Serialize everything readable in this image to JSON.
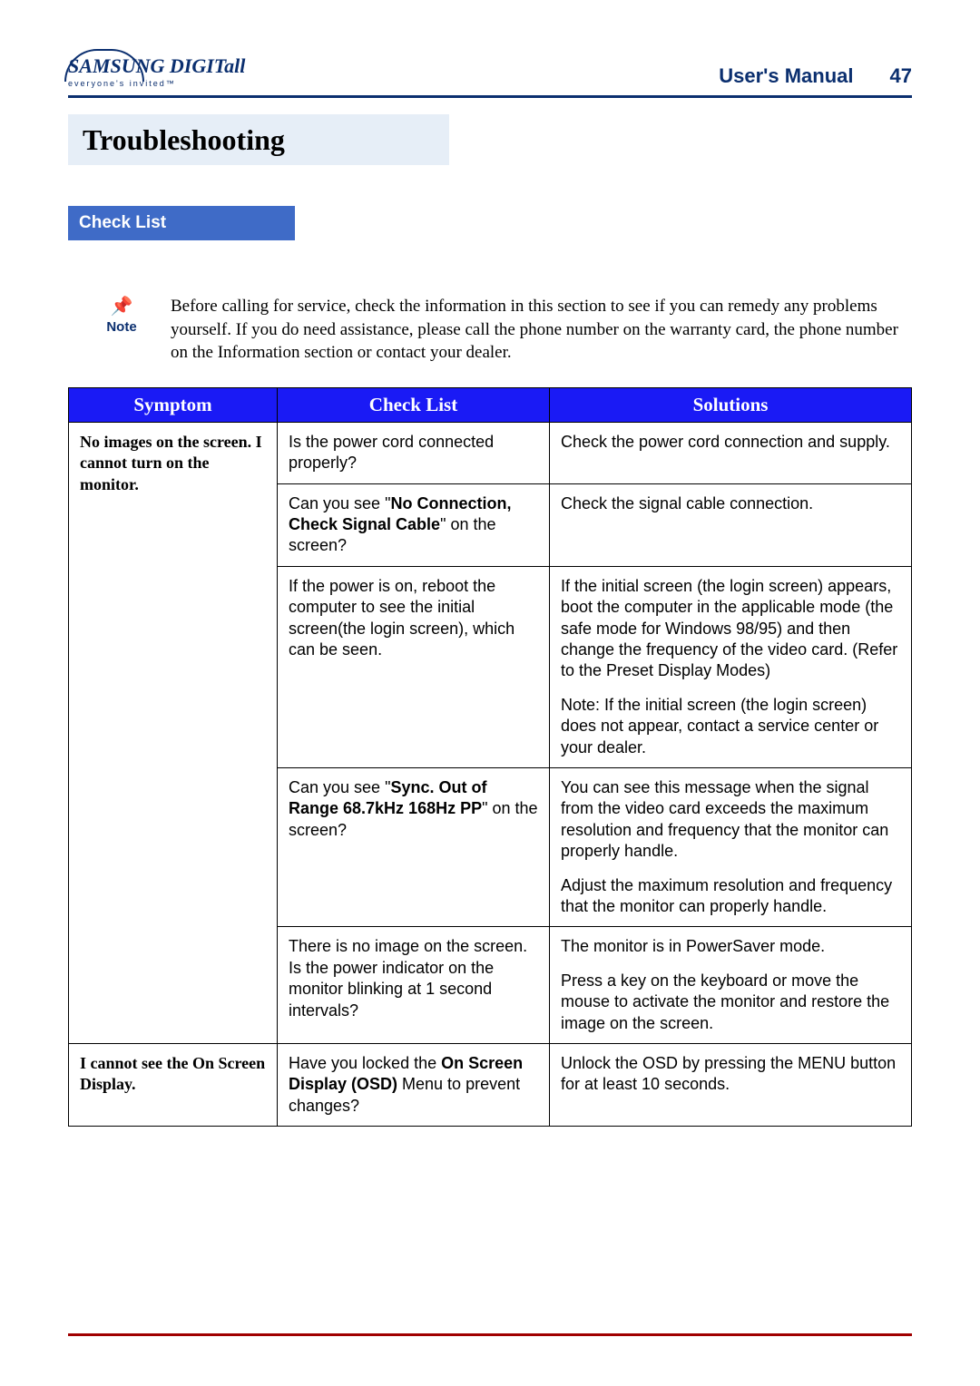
{
  "brand": {
    "logo_main": "SAMSUNG DIGITall",
    "logo_sub": "everyone's invited™"
  },
  "header": {
    "manual_label": "User's Manual",
    "page_number": "47"
  },
  "title_band": "Troubleshooting",
  "subsection": "Check List",
  "note": {
    "icon_label": "Note",
    "text": "Before calling for service, check the information in this section to see if you can remedy any problems yourself. If you do need assistance, please call the phone number on the warranty card, the phone number on the Information section or contact your dealer."
  },
  "colors": {
    "brand_navy": "#0b2f6f",
    "band_light": "#e6eef7",
    "tab_blue": "#3f6bc7",
    "table_header_blue": "#1a1af5",
    "footer_rule": "#a00000"
  },
  "table": {
    "headers": {
      "symptom": "Symptom",
      "check": "Check List",
      "solutions": "Solutions"
    },
    "groups": [
      {
        "symptom": "No images on the screen. I cannot turn on the monitor.",
        "rows": [
          {
            "check": {
              "prefix": "Is the power cord connected properly?"
            },
            "solution": {
              "p1": "Check the power cord connection and supply."
            }
          },
          {
            "check": {
              "prefix": "Can you see \"",
              "bold": "No Connection, Check Signal Cable",
              "suffix": "\" on the screen?"
            },
            "solution": {
              "p1": "Check the signal cable connection."
            }
          },
          {
            "check": {
              "prefix": "If the power is on, reboot the computer to see the initial screen(the login screen), which can be seen."
            },
            "solution": {
              "p1": "If the initial screen (the login screen) appears, boot the computer in the applicable mode (the safe mode for Windows 98/95) and then change the frequency of the video card. (Refer to the Preset Display Modes)",
              "p2": "Note: If the initial screen (the login screen) does not appear, contact a service center or your dealer."
            }
          },
          {
            "check": {
              "prefix": "Can you see \"",
              "bold": "Sync. Out of Range 68.7kHz 168Hz PP",
              "suffix": "\" on the screen?"
            },
            "solution": {
              "p1": "You can see this message when the signal from the video card exceeds the maximum resolution and frequency that the monitor can properly handle.",
              "p2": "Adjust the maximum resolution and frequency that the monitor can properly handle."
            }
          },
          {
            "check": {
              "prefix": "There is no image on the screen. Is the power indicator on the monitor blinking at 1 second intervals?"
            },
            "solution": {
              "p1": "The monitor is in PowerSaver mode.",
              "p2": "Press a key on the keyboard or move the mouse to activate the monitor and restore the image on the screen."
            }
          }
        ]
      },
      {
        "symptom": "I cannot see the On Screen Display.",
        "rows": [
          {
            "check": {
              "prefix": "Have you locked the ",
              "bold": "On Screen Display (OSD)",
              "suffix": " Menu to prevent changes?"
            },
            "solution": {
              "p1": "Unlock the OSD by pressing the MENU button for at least 10 seconds."
            }
          }
        ]
      }
    ]
  }
}
